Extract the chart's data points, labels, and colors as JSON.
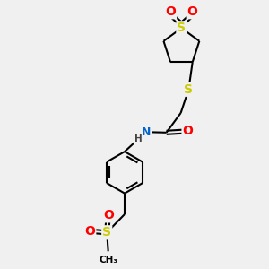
{
  "background_color": "#f0f0f0",
  "bond_color": "#000000",
  "sulfur_color": "#cccc00",
  "oxygen_color": "#ff0000",
  "nitrogen_color": "#0066cc",
  "line_width": 1.5,
  "figsize": [
    3.0,
    3.0
  ],
  "dpi": 100,
  "xlim": [
    0,
    10
  ],
  "ylim": [
    0,
    10
  ]
}
